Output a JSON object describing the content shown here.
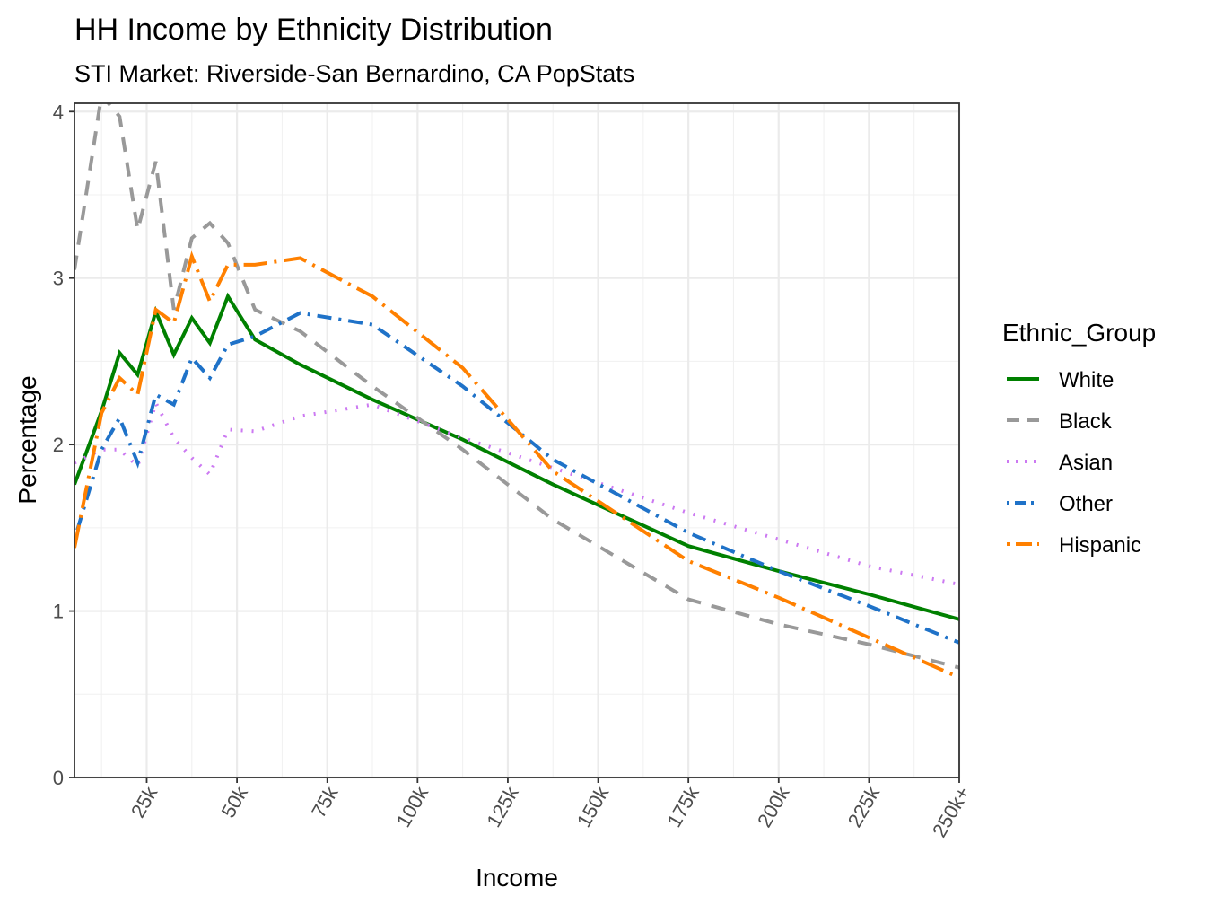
{
  "chart_data": {
    "type": "line",
    "title": "HH Income by Ethnicity Distribution",
    "subtitle": "STI Market: Riverside-San Bernardino, CA PopStats",
    "xlabel": "Income",
    "ylabel": "Percentage",
    "xlim": [
      5,
      250
    ],
    "ylim": [
      0,
      4.05
    ],
    "x_ticks": [
      25,
      50,
      75,
      100,
      125,
      150,
      175,
      200,
      225,
      250
    ],
    "x_tick_labels": [
      "25k",
      "50k",
      "75k",
      "100k",
      "125k",
      "150k",
      "175k",
      "200k",
      "225k",
      "250k+"
    ],
    "y_ticks": [
      0,
      1,
      2,
      3,
      4
    ],
    "y_tick_labels": [
      "0",
      "1",
      "2",
      "3",
      "4"
    ],
    "grid": true,
    "legend": {
      "title": "Ethnic_Group",
      "position": "right"
    },
    "x": [
      5,
      12.5,
      17.5,
      22.5,
      27.5,
      32.5,
      37.5,
      42.5,
      47.5,
      55,
      67.5,
      87.5,
      112.5,
      137.5,
      175,
      200,
      225,
      250
    ],
    "series": [
      {
        "name": "White",
        "color": "#008000",
        "dash": "solid",
        "values": [
          1.76,
          2.2,
          2.55,
          2.42,
          2.8,
          2.54,
          2.76,
          2.61,
          2.89,
          2.63,
          2.48,
          2.27,
          2.03,
          1.76,
          1.39,
          1.24,
          1.1,
          0.95
        ]
      },
      {
        "name": "Black",
        "color": "#999999",
        "dash": "dashed",
        "values": [
          3.05,
          4.1,
          3.97,
          3.29,
          3.7,
          2.81,
          3.24,
          3.33,
          3.21,
          2.81,
          2.68,
          2.35,
          1.97,
          1.55,
          1.07,
          0.92,
          0.8,
          0.66
        ]
      },
      {
        "name": "Asian",
        "color": "#CC79F2",
        "dash": "dotted",
        "values": [
          1.89,
          1.97,
          1.97,
          1.87,
          2.25,
          2.04,
          1.92,
          1.82,
          2.09,
          2.08,
          2.17,
          2.24,
          2.04,
          1.86,
          1.59,
          1.43,
          1.27,
          1.16
        ]
      },
      {
        "name": "Other",
        "color": "#1F72C8",
        "dash": "dotdash",
        "values": [
          1.43,
          1.97,
          2.16,
          1.89,
          2.3,
          2.24,
          2.52,
          2.4,
          2.6,
          2.65,
          2.79,
          2.72,
          2.35,
          1.91,
          1.47,
          1.24,
          1.03,
          0.81
        ]
      },
      {
        "name": "Hispanic",
        "color": "#FF8000",
        "dash": "longdash-dot",
        "values": [
          1.38,
          2.19,
          2.4,
          2.3,
          2.81,
          2.73,
          3.13,
          2.86,
          3.08,
          3.08,
          3.12,
          2.89,
          2.46,
          1.84,
          1.3,
          1.08,
          0.84,
          0.6
        ]
      }
    ]
  }
}
